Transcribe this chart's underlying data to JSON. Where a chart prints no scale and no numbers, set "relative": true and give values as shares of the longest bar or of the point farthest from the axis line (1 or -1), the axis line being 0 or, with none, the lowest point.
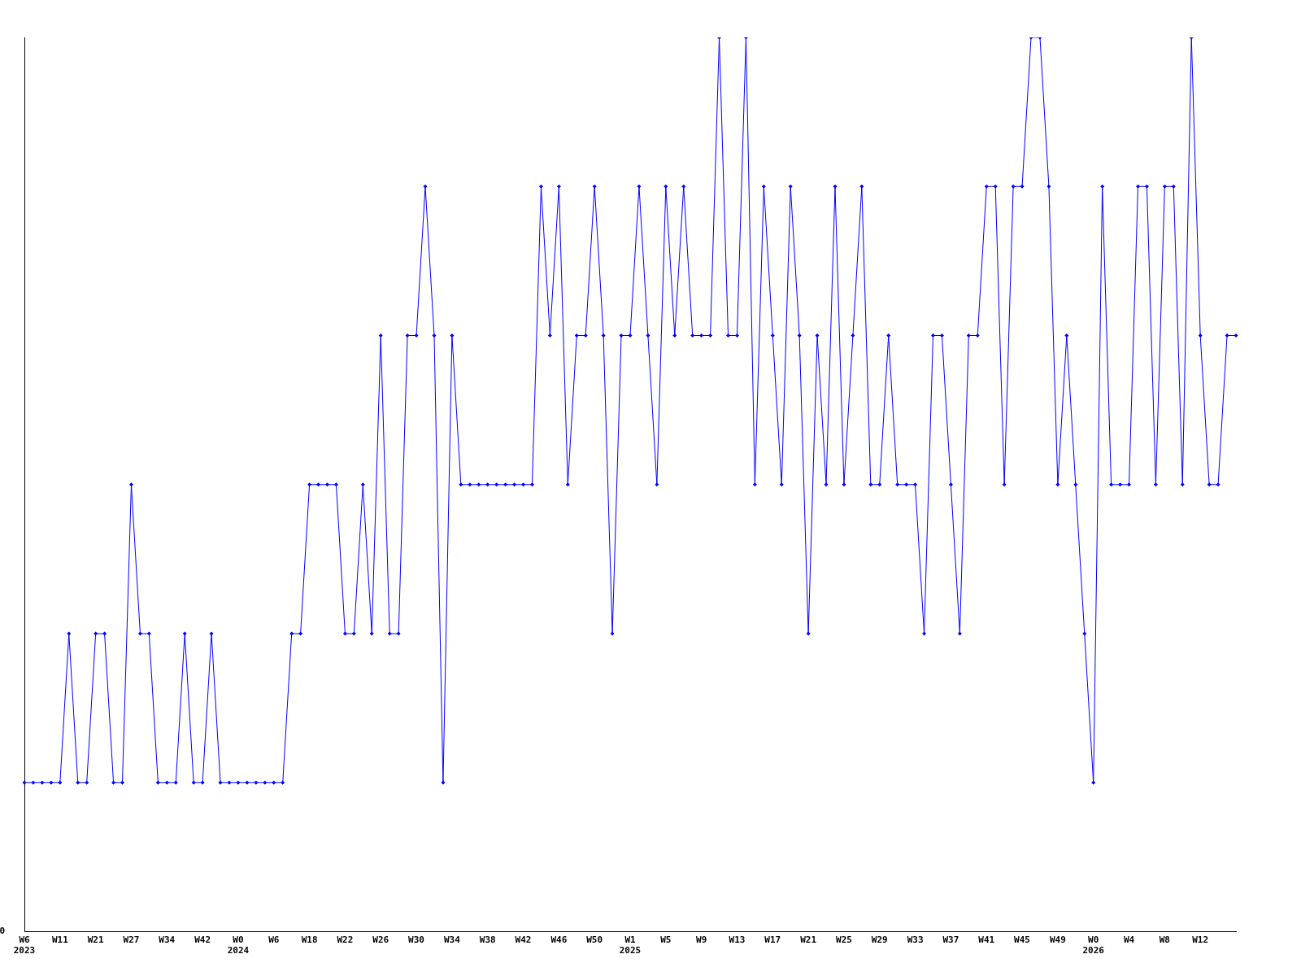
{
  "chart_data": {
    "type": "line",
    "relative": true,
    "marker": "diamond",
    "line_style": "solid",
    "annotations": [
      "0"
    ],
    "categories": [
      "W6\n2023",
      null,
      null,
      null,
      "W11",
      null,
      null,
      null,
      "W21",
      null,
      null,
      null,
      "W27",
      null,
      null,
      null,
      "W34",
      null,
      null,
      null,
      "W42",
      null,
      null,
      null,
      "W0\n2024",
      null,
      null,
      null,
      "W6",
      null,
      null,
      null,
      "W18",
      null,
      null,
      null,
      "W22",
      null,
      null,
      null,
      "W26",
      null,
      null,
      null,
      "W30",
      null,
      null,
      null,
      "W34",
      null,
      null,
      null,
      "W38",
      null,
      null,
      null,
      "W42",
      null,
      null,
      null,
      "W46",
      null,
      null,
      null,
      "W50",
      null,
      null,
      null,
      "W1\n2025",
      null,
      null,
      null,
      "W5",
      null,
      null,
      null,
      "W9",
      null,
      null,
      null,
      "W13",
      null,
      null,
      null,
      "W17",
      null,
      null,
      null,
      "W21",
      null,
      null,
      null,
      "W25",
      null,
      null,
      null,
      "W29",
      null,
      null,
      null,
      "W33",
      null,
      null,
      null,
      "W37",
      null,
      null,
      null,
      "W41",
      null,
      null,
      null,
      "W45",
      null,
      null,
      null,
      "W49",
      null,
      null,
      null,
      "W0\n2026",
      null,
      null,
      null,
      "W4",
      null,
      null,
      null,
      "W8",
      null,
      null,
      null,
      "W12",
      null,
      null,
      null,
      null
    ],
    "series": [
      {
        "color": "#0000ff",
        "values": [
          0.1667,
          0.1667,
          0.1667,
          0.1667,
          0.1667,
          0.3333,
          0.1667,
          0.1667,
          0.3333,
          0.3333,
          0.1667,
          0.1667,
          0.5,
          0.3333,
          0.3333,
          0.1667,
          0.1667,
          0.1667,
          0.3333,
          0.1667,
          0.1667,
          0.3333,
          0.1667,
          0.1667,
          0.1667,
          0.1667,
          0.1667,
          0.1667,
          0.1667,
          0.1667,
          0.3333,
          0.3333,
          0.5,
          0.5,
          0.5,
          0.5,
          0.3333,
          0.3333,
          0.5,
          0.3333,
          0.6667,
          0.3333,
          0.3333,
          0.6667,
          0.6667,
          0.8333,
          0.6667,
          0.1667,
          0.6667,
          0.5,
          0.5,
          0.5,
          0.5,
          0.5,
          0.5,
          0.5,
          0.5,
          0.5,
          0.8333,
          0.6667,
          0.8333,
          0.5,
          0.6667,
          0.6667,
          0.8333,
          0.6667,
          0.3333,
          0.6667,
          0.6667,
          0.8333,
          0.6667,
          0.5,
          0.8333,
          0.6667,
          0.8333,
          0.6667,
          0.6667,
          0.6667,
          1,
          0.6667,
          0.6667,
          1,
          0.5,
          0.8333,
          0.6667,
          0.5,
          0.8333,
          0.6667,
          0.3333,
          0.6667,
          0.5,
          0.8333,
          0.5,
          0.6667,
          0.8333,
          0.5,
          0.5,
          0.6667,
          0.5,
          0.5,
          0.5,
          0.3333,
          0.6667,
          0.6667,
          0.5,
          0.3333,
          0.6667,
          0.6667,
          0.8333,
          0.8333,
          0.5,
          0.8333,
          0.8333,
          1,
          1,
          0.8333,
          0.5,
          0.6667,
          0.5,
          0.3333,
          0.1667,
          0.8333,
          0.5,
          0.5,
          0.5,
          0.8333,
          0.8333,
          0.5,
          0.8333,
          0.8333,
          0.5,
          1,
          0.6667,
          0.5,
          0.5,
          0.6667,
          0.6667
        ]
      }
    ]
  }
}
